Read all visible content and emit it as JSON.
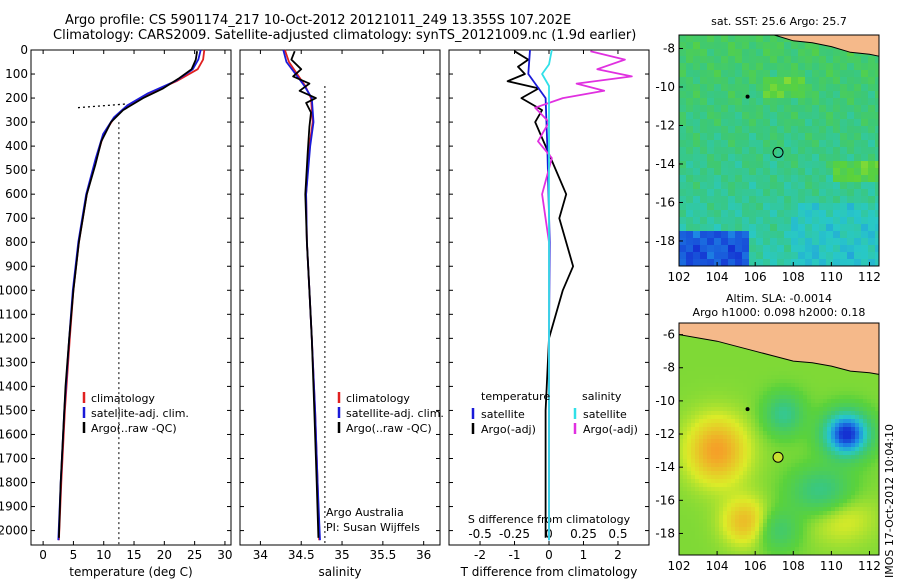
{
  "titles": {
    "line1": "Argo profile: CS 5901174_217 10-Oct-2012 20121011_249 13.355S 107.202E",
    "line2": "Climatology: CARS2009. Satellite-adjusted climatology: synTS_20121009.nc (1.9d earlier)"
  },
  "side_label": "IMOS 17-Oct-2012 10:04:10",
  "colors": {
    "climatology": "#e02020",
    "satellite": "#1a1ad8",
    "argo": "#000000",
    "satellite_s": "#30e0e8",
    "argo_s": "#e030e0",
    "map_land": "#f5b98a"
  },
  "chart_data": [
    {
      "type": "line",
      "id": "temperature",
      "xlabel": "temperature (deg C)",
      "x_ticks": [
        0,
        5,
        10,
        15,
        20,
        25,
        30
      ],
      "xlim": [
        -2,
        31
      ],
      "y_ticks": [
        0,
        100,
        200,
        300,
        400,
        500,
        600,
        700,
        800,
        900,
        1000,
        1100,
        1200,
        1300,
        1400,
        1500,
        1600,
        1700,
        1800,
        1900,
        2000
      ],
      "ylim": [
        2060,
        0
      ],
      "legend": [
        "climatology",
        "satellite-adj. clim.",
        "Argo(..raw -QC)"
      ],
      "mixed_layer_depth": 240,
      "reference_temperature": 12.5,
      "series": [
        {
          "name": "climatology",
          "depth": [
            0,
            40,
            80,
            130,
            180,
            230,
            280,
            350,
            450,
            600,
            800,
            1000,
            1200,
            1500,
            1800,
            2040
          ],
          "value": [
            26.6,
            26.4,
            25.5,
            22.0,
            17.5,
            14.0,
            11.8,
            10.0,
            8.8,
            7.2,
            5.9,
            5.0,
            4.4,
            3.6,
            3.0,
            2.6
          ]
        },
        {
          "name": "satellite-adj. clim.",
          "depth": [
            0,
            40,
            80,
            130,
            180,
            230,
            280,
            350,
            450,
            600,
            800,
            1000,
            1200,
            1500,
            1800,
            2040
          ],
          "value": [
            26.0,
            25.6,
            24.7,
            21.8,
            17.3,
            13.9,
            11.7,
            9.9,
            8.7,
            7.1,
            5.8,
            4.9,
            4.3,
            3.5,
            2.9,
            2.5
          ]
        },
        {
          "name": "Argo(..raw -QC)",
          "depth": [
            5,
            40,
            80,
            120,
            160,
            200,
            250,
            300,
            380,
            480,
            600,
            800,
            1000,
            1200,
            1400,
            1600,
            1800,
            2030
          ],
          "value": [
            25.4,
            25.2,
            24.5,
            22.3,
            19.8,
            16.5,
            13.2,
            11.2,
            9.6,
            8.6,
            7.2,
            5.9,
            5.0,
            4.3,
            3.7,
            3.3,
            2.9,
            2.6
          ]
        }
      ]
    },
    {
      "type": "line",
      "id": "salinity",
      "xlabel": "salinity",
      "x_ticks": [
        34,
        34.5,
        35,
        35.5,
        36
      ],
      "xlim": [
        33.75,
        36.2
      ],
      "ylim": [
        2060,
        0
      ],
      "legend": [
        "climatology",
        "satellite-adj. clim.",
        "Argo(..raw -QC)"
      ],
      "reference_salinity": 34.79,
      "annotation": [
        "Argo Australia",
        "PI: Susan Wijffels"
      ],
      "series": [
        {
          "name": "climatology",
          "depth": [
            0,
            50,
            100,
            150,
            200,
            300,
            400,
            600,
            800,
            1000,
            1200,
            1500,
            1800,
            2040
          ],
          "value": [
            34.3,
            34.35,
            34.45,
            34.55,
            34.62,
            34.64,
            34.6,
            34.56,
            34.57,
            34.6,
            34.63,
            34.67,
            34.7,
            34.72
          ]
        },
        {
          "name": "satellite-adj. clim.",
          "depth": [
            0,
            50,
            100,
            150,
            200,
            300,
            400,
            600,
            800,
            1000,
            1200,
            1500,
            1800,
            2040
          ],
          "value": [
            34.28,
            34.32,
            34.43,
            34.54,
            34.63,
            34.65,
            34.61,
            34.56,
            34.57,
            34.6,
            34.63,
            34.67,
            34.7,
            34.73
          ]
        },
        {
          "name": "Argo(..raw -QC)",
          "depth": [
            5,
            40,
            80,
            110,
            140,
            170,
            200,
            220,
            260,
            320,
            420,
            600,
            800,
            1000,
            1200,
            1500,
            1800,
            2030
          ],
          "value": [
            34.42,
            34.38,
            34.5,
            34.4,
            34.6,
            34.48,
            34.68,
            34.56,
            34.62,
            34.6,
            34.58,
            34.55,
            34.57,
            34.6,
            34.63,
            34.66,
            34.69,
            34.71
          ]
        }
      ]
    },
    {
      "type": "line",
      "id": "difference",
      "xlabel": "T difference from climatology",
      "xlabel_top": "S difference from climatology",
      "x_ticks": [
        -2,
        -1,
        0,
        1,
        2
      ],
      "x_tick_labels": [
        "-2",
        "-1",
        "0",
        "1",
        "2"
      ],
      "s_ticks": [
        -0.5,
        -0.25,
        0,
        0.25,
        0.5
      ],
      "s_tick_labels": [
        "-0.5",
        "-0.25",
        "0",
        "0.25",
        "0.5"
      ],
      "xlim": [
        -2.9,
        2.9
      ],
      "ylim": [
        2060,
        0
      ],
      "legend_headers": [
        "temperature",
        "salinity"
      ],
      "legend": [
        "satellite",
        "Argo(-adj)",
        "satellite",
        "Argo(-adj)"
      ],
      "series": [
        {
          "name": "satellite",
          "depth": [
            0,
            100,
            200,
            400,
            800,
            1200,
            1600,
            2040
          ],
          "value": [
            -0.55,
            -0.6,
            -0.1,
            -0.05,
            0.02,
            0.0,
            0.0,
            0.0
          ]
        },
        {
          "name": "Argo(-adj)",
          "depth": [
            5,
            40,
            70,
            100,
            130,
            160,
            200,
            250,
            300,
            400,
            500,
            600,
            700,
            800,
            900,
            1000,
            1100,
            1200,
            1500,
            1800,
            2030
          ],
          "value": [
            -1.0,
            -0.6,
            -0.9,
            -0.7,
            -1.2,
            -0.3,
            -0.8,
            -0.2,
            -0.4,
            -0.1,
            0.2,
            0.5,
            0.3,
            0.5,
            0.7,
            0.4,
            0.2,
            0.0,
            -0.1,
            -0.1,
            -0.1
          ]
        },
        {
          "name": "satellite",
          "depth": [
            0,
            60,
            100,
            150,
            250,
            500,
            1000,
            2040
          ],
          "value": [
            0.02,
            0.0,
            -0.05,
            0.0,
            0.0,
            0.0,
            0.0,
            0.0
          ]
        },
        {
          "name": "Argo(-adj)",
          "depth": [
            5,
            40,
            80,
            110,
            140,
            170,
            200,
            240,
            300,
            380,
            450,
            600,
            800,
            1000,
            1500,
            2030
          ],
          "value": [
            0.3,
            0.55,
            0.35,
            0.6,
            0.2,
            0.4,
            0.1,
            -0.1,
            0.0,
            -0.08,
            0.02,
            -0.05,
            0.0,
            0.0,
            0.0,
            0.0
          ]
        }
      ]
    },
    {
      "type": "heatmap",
      "id": "sst_map",
      "title": "sat. SST: 25.6 Argo: 25.7",
      "x_ticks": [
        102,
        104,
        106,
        108,
        110,
        112
      ],
      "y_ticks": [
        -8,
        -10,
        -12,
        -14,
        -16,
        -18
      ],
      "xlim": [
        102,
        112.5
      ],
      "ylim": [
        -19.3,
        -7.3
      ],
      "argo_position": [
        107.2,
        -13.4
      ]
    },
    {
      "type": "heatmap",
      "id": "sla_map",
      "title": "Altim. SLA: -0.0014",
      "subtitle": "Argo h1000: 0.098 h2000: 0.18",
      "x_ticks": [
        102,
        104,
        106,
        108,
        110,
        112
      ],
      "y_ticks": [
        -6,
        -8,
        -10,
        -12,
        -14,
        -16,
        -18
      ],
      "xlim": [
        102,
        112.5
      ],
      "ylim": [
        -19.3,
        -5.3
      ],
      "argo_position": [
        107.2,
        -13.4
      ]
    }
  ]
}
